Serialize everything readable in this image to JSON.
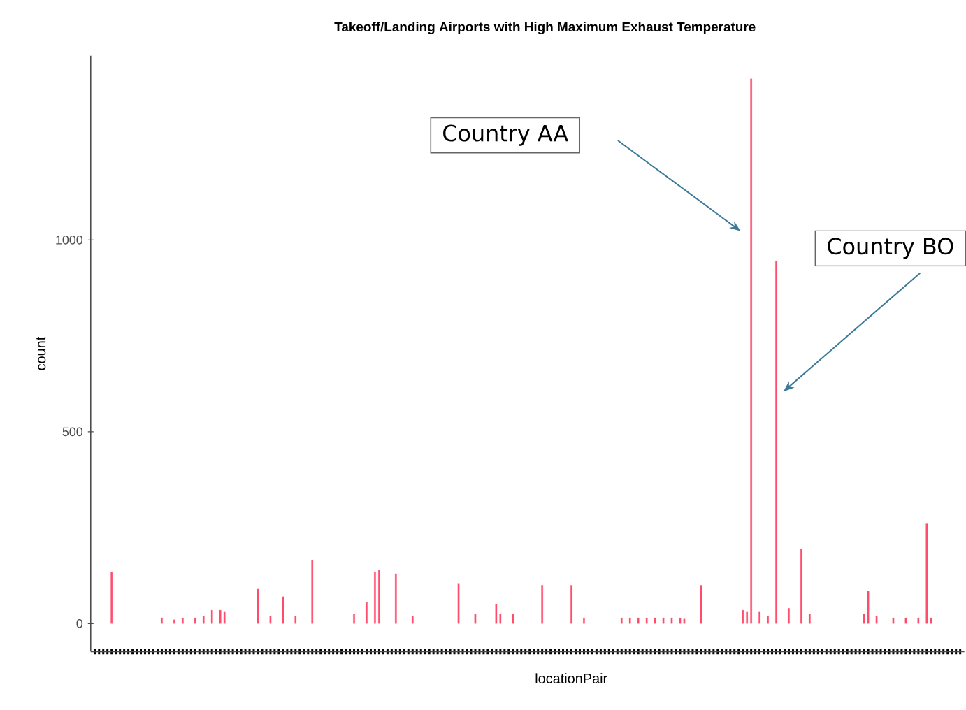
{
  "chart_data": {
    "type": "bar",
    "title": "Takeoff/Landing Airports with High Maximum Exhaust Temperature",
    "xlabel": "locationPair",
    "ylabel": "count",
    "categories": [
      null,
      null,
      null,
      null,
      null,
      null,
      null,
      null,
      null,
      null,
      null,
      null,
      null,
      null,
      null,
      null,
      null,
      null,
      null,
      null,
      null,
      null,
      null,
      null,
      null,
      null,
      null,
      null,
      null,
      null,
      null,
      null,
      null,
      null,
      null,
      null,
      null,
      null,
      null,
      null,
      null,
      null,
      null,
      null,
      null,
      null,
      null,
      null,
      null,
      null,
      null,
      null,
      null,
      null,
      null,
      null,
      null,
      null,
      null,
      null,
      null,
      null,
      null,
      null,
      null,
      null,
      null,
      null,
      null,
      null,
      null,
      null,
      null,
      null,
      null,
      null,
      null,
      null,
      null,
      null,
      null,
      null,
      null,
      null,
      null,
      null,
      null,
      null,
      null,
      null,
      null,
      null,
      null,
      null,
      null,
      null,
      null,
      null,
      null,
      null,
      null,
      null,
      null,
      null,
      null,
      null,
      null,
      null,
      null,
      null,
      null,
      null,
      null,
      null,
      null,
      null,
      null,
      null,
      null,
      null,
      null,
      null,
      null,
      null,
      null,
      null,
      null,
      null,
      null,
      null,
      null,
      null,
      null,
      null,
      null,
      null,
      null,
      null,
      null,
      null,
      null,
      null,
      null,
      null,
      null,
      null,
      null,
      null,
      null,
      null,
      null,
      null,
      null,
      null,
      null,
      null,
      null,
      null,
      null,
      null,
      null,
      null,
      null,
      null,
      null,
      null,
      null,
      null,
      null,
      null,
      null,
      null,
      null,
      null,
      null,
      null,
      null,
      null,
      null,
      null,
      null,
      null,
      null,
      null,
      null,
      null,
      null,
      null,
      null,
      null,
      null,
      null,
      null,
      null,
      null,
      null,
      null,
      null,
      null,
      null,
      null,
      null,
      null,
      null,
      null,
      null,
      null,
      null
    ],
    "values": [
      null,
      null,
      null,
      null,
      135,
      null,
      null,
      null,
      null,
      null,
      null,
      null,
      null,
      null,
      null,
      null,
      15,
      null,
      null,
      10,
      null,
      15,
      null,
      null,
      15,
      null,
      20,
      null,
      35,
      null,
      35,
      30,
      null,
      null,
      null,
      null,
      null,
      null,
      null,
      90,
      null,
      null,
      20,
      null,
      null,
      70,
      null,
      null,
      20,
      null,
      null,
      null,
      165,
      null,
      null,
      null,
      null,
      null,
      null,
      null,
      null,
      null,
      25,
      null,
      null,
      55,
      null,
      135,
      140,
      null,
      null,
      null,
      130,
      null,
      null,
      null,
      20,
      null,
      null,
      null,
      null,
      null,
      null,
      null,
      null,
      null,
      null,
      105,
      null,
      null,
      null,
      25,
      null,
      null,
      null,
      null,
      50,
      25,
      null,
      null,
      25,
      null,
      null,
      null,
      null,
      null,
      null,
      100,
      null,
      null,
      null,
      null,
      null,
      null,
      100,
      null,
      null,
      15,
      null,
      null,
      null,
      null,
      null,
      null,
      null,
      null,
      15,
      null,
      15,
      null,
      15,
      null,
      15,
      null,
      15,
      null,
      15,
      null,
      15,
      null,
      15,
      12,
      null,
      null,
      null,
      100,
      null,
      null,
      null,
      null,
      null,
      null,
      null,
      null,
      null,
      35,
      30,
      1420,
      null,
      30,
      null,
      20,
      null,
      945,
      null,
      null,
      40,
      null,
      null,
      195,
      null,
      25,
      null,
      null,
      null,
      null,
      null,
      null,
      null,
      null,
      null,
      null,
      null,
      null,
      25,
      85,
      null,
      20,
      null,
      null,
      null,
      15,
      null,
      null,
      15,
      null,
      null,
      15,
      null,
      260,
      15,
      null,
      null,
      null,
      null,
      null,
      null,
      null
    ],
    "color": "#ff4d6d",
    "ylim": [
      -73,
      1480
    ],
    "yticks": [
      0,
      500,
      1000
    ],
    "tick_labels": "y",
    "grid": false,
    "annotations": [
      "Country AA",
      "Country BO"
    ]
  }
}
